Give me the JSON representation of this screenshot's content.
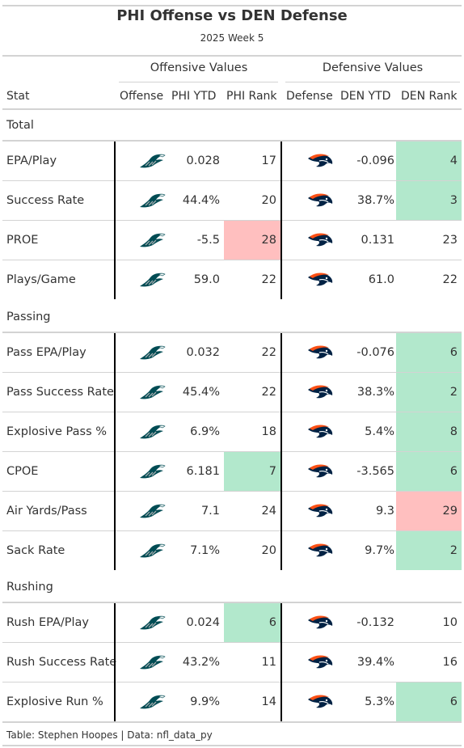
{
  "header": {
    "title": "PHI Offense vs DEN Defense",
    "subtitle": "2025 Week 5"
  },
  "spanners": {
    "offense": "Offensive Values",
    "defense": "Defensive Values"
  },
  "columns": [
    "Stat",
    "Offense",
    "PHI YTD",
    "PHI Rank",
    "Defense",
    "DEN YTD",
    "DEN Rank"
  ],
  "logos": {
    "offense": "eagles-logo-icon",
    "defense": "broncos-logo-icon"
  },
  "colors": {
    "good": "#b2e8cc",
    "bad": "#ffbfbf",
    "eagles_green": "#004c54",
    "broncos_orange": "#fb4f14",
    "broncos_navy": "#002244"
  },
  "groups": [
    {
      "label": "Total",
      "rows": [
        {
          "stat": "EPA/Play",
          "phi_ytd": "0.028",
          "phi_rank": "17",
          "phi_color": "",
          "den_ytd": "-0.096",
          "den_rank": "4",
          "den_color": "good"
        },
        {
          "stat": "Success Rate",
          "phi_ytd": "44.4%",
          "phi_rank": "20",
          "phi_color": "",
          "den_ytd": "38.7%",
          "den_rank": "3",
          "den_color": "good"
        },
        {
          "stat": "PROE",
          "phi_ytd": "-5.5",
          "phi_rank": "28",
          "phi_color": "bad",
          "den_ytd": "0.131",
          "den_rank": "23",
          "den_color": ""
        },
        {
          "stat": "Plays/Game",
          "phi_ytd": "59.0",
          "phi_rank": "22",
          "phi_color": "",
          "den_ytd": "61.0",
          "den_rank": "22",
          "den_color": ""
        }
      ]
    },
    {
      "label": "Passing",
      "rows": [
        {
          "stat": "Pass EPA/Play",
          "phi_ytd": "0.032",
          "phi_rank": "22",
          "phi_color": "",
          "den_ytd": "-0.076",
          "den_rank": "6",
          "den_color": "good"
        },
        {
          "stat": "Pass Success Rate",
          "phi_ytd": "45.4%",
          "phi_rank": "22",
          "phi_color": "",
          "den_ytd": "38.3%",
          "den_rank": "2",
          "den_color": "good"
        },
        {
          "stat": "Explosive Pass %",
          "phi_ytd": "6.9%",
          "phi_rank": "18",
          "phi_color": "",
          "den_ytd": "5.4%",
          "den_rank": "8",
          "den_color": "good"
        },
        {
          "stat": "CPOE",
          "phi_ytd": "6.181",
          "phi_rank": "7",
          "phi_color": "good",
          "den_ytd": "-3.565",
          "den_rank": "6",
          "den_color": "good"
        },
        {
          "stat": "Air Yards/Pass",
          "phi_ytd": "7.1",
          "phi_rank": "24",
          "phi_color": "",
          "den_ytd": "9.3",
          "den_rank": "29",
          "den_color": "bad"
        },
        {
          "stat": "Sack Rate",
          "phi_ytd": "7.1%",
          "phi_rank": "20",
          "phi_color": "",
          "den_ytd": "9.7%",
          "den_rank": "2",
          "den_color": "good"
        }
      ]
    },
    {
      "label": "Rushing",
      "rows": [
        {
          "stat": "Rush EPA/Play",
          "phi_ytd": "0.024",
          "phi_rank": "6",
          "phi_color": "good",
          "den_ytd": "-0.132",
          "den_rank": "10",
          "den_color": ""
        },
        {
          "stat": "Rush Success Rate",
          "phi_ytd": "43.2%",
          "phi_rank": "11",
          "phi_color": "",
          "den_ytd": "39.4%",
          "den_rank": "16",
          "den_color": ""
        },
        {
          "stat": "Explosive Run %",
          "phi_ytd": "9.9%",
          "phi_rank": "14",
          "phi_color": "",
          "den_ytd": "5.3%",
          "den_rank": "6",
          "den_color": "good"
        }
      ]
    }
  ],
  "source_note": "Table: Stephen Hoopes | Data: nfl_data_py"
}
